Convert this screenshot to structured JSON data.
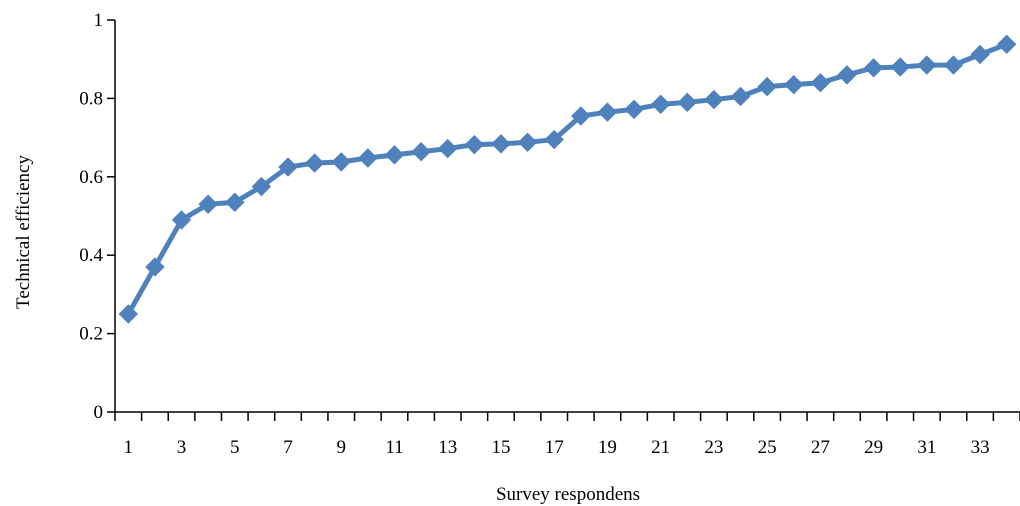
{
  "chart_data": {
    "type": "line",
    "title": "",
    "xlabel": "Survey respondens",
    "ylabel": "Technical efficiency",
    "ylim": [
      0,
      1
    ],
    "yticks": [
      "0",
      "0.2",
      "0.4",
      "0.6",
      "0.8",
      "1"
    ],
    "xtick_labels": [
      "1",
      "3",
      "5",
      "7",
      "9",
      "11",
      "13",
      "15",
      "17",
      "19",
      "21",
      "23",
      "25",
      "27",
      "29",
      "31",
      "33"
    ],
    "x": [
      1,
      2,
      3,
      4,
      5,
      6,
      7,
      8,
      9,
      10,
      11,
      12,
      13,
      14,
      15,
      16,
      17,
      18,
      19,
      20,
      21,
      22,
      23,
      24,
      25,
      26,
      27,
      28,
      29,
      30,
      31,
      32,
      33,
      34
    ],
    "series": [
      {
        "values": [
          0.25,
          0.37,
          0.49,
          0.53,
          0.535,
          0.575,
          0.625,
          0.635,
          0.638,
          0.648,
          0.656,
          0.664,
          0.672,
          0.682,
          0.684,
          0.688,
          0.695,
          0.755,
          0.765,
          0.772,
          0.785,
          0.79,
          0.797,
          0.805,
          0.83,
          0.835,
          0.84,
          0.86,
          0.878,
          0.88,
          0.885,
          0.885,
          0.912,
          0.938
        ]
      }
    ],
    "line_color": "#4f81bd",
    "grid": false
  }
}
